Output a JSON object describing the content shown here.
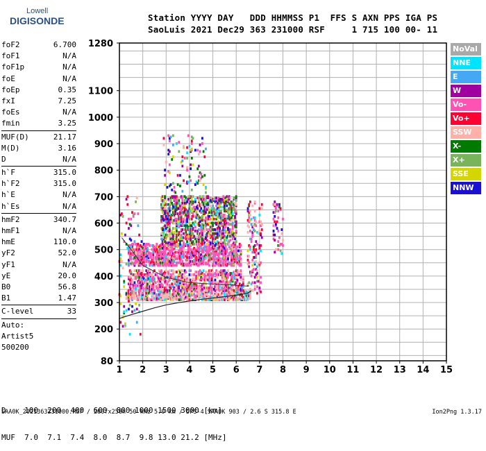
{
  "logo": {
    "line1": "Lowell",
    "line2": "DIGISONDE"
  },
  "header": {
    "line1": "Station YYYY DAY   DDD HHMMSS P1  FFS S AXN PPS IGA PS",
    "line2": "SaoLuis 2021 Dec29 363 231000 RSF     1 715 100 00- 11"
  },
  "params_groups": [
    [
      {
        "name": "foF2",
        "value": "6.700"
      },
      {
        "name": "foF1",
        "value": "N/A"
      },
      {
        "name": "foF1p",
        "value": "N/A"
      },
      {
        "name": "foE",
        "value": "N/A"
      },
      {
        "name": "foEp",
        "value": "0.35"
      },
      {
        "name": "fxI",
        "value": "7.25"
      },
      {
        "name": "foEs",
        "value": "N/A"
      },
      {
        "name": "fmin",
        "value": "3.25"
      }
    ],
    [
      {
        "name": "MUF(D)",
        "value": "21.17"
      },
      {
        "name": "M(D)",
        "value": "3.16"
      },
      {
        "name": "D",
        "value": "N/A"
      }
    ],
    [
      {
        "name": "h`F",
        "value": "315.0"
      },
      {
        "name": "h`F2",
        "value": "315.0"
      },
      {
        "name": "h`E",
        "value": "N/A"
      },
      {
        "name": "h`Es",
        "value": "N/A"
      }
    ],
    [
      {
        "name": "hmF2",
        "value": "340.7"
      },
      {
        "name": "hmF1",
        "value": "N/A"
      },
      {
        "name": "hmE",
        "value": "110.0"
      },
      {
        "name": "yF2",
        "value": "52.0"
      },
      {
        "name": "yF1",
        "value": "N/A"
      },
      {
        "name": "yE",
        "value": "20.0"
      },
      {
        "name": "B0",
        "value": "56.8"
      },
      {
        "name": "B1",
        "value": "1.47"
      }
    ],
    [
      {
        "name": "C-level",
        "value": "33"
      }
    ]
  ],
  "autoscale": {
    "line1": "Auto:",
    "line2": "Artist5",
    "line3": "500200"
  },
  "legend": [
    {
      "label": "NoVal",
      "color": "#a9a9a9"
    },
    {
      "label": "NNE",
      "color": "#00e5ff"
    },
    {
      "label": "E",
      "color": "#45a8f5"
    },
    {
      "label": "W",
      "color": "#a0009f"
    },
    {
      "label": "Vo-",
      "color": "#ff52b5"
    },
    {
      "label": "Vo+",
      "color": "#ff0032"
    },
    {
      "label": "SSW",
      "color": "#ffb0a8"
    },
    {
      "label": "X-",
      "color": "#007a00"
    },
    {
      "label": "X+",
      "color": "#78b45a"
    },
    {
      "label": "SSE",
      "color": "#d4d600"
    },
    {
      "label": "NNW",
      "color": "#1a0fd4"
    }
  ],
  "dmuf": {
    "line1": "D    100  200  400  600  800 1000 1500 3000 [km]",
    "line2": "MUF  7.0  7.1  7.4  8.0  8.7  9.8 13.0 21.2 [MHz]"
  },
  "footer": {
    "text": "SAA0K_2021363231000.RSF / 280fx256h 50 kHz 5.0 km / DPS-4 SAA0K 903 / 2.6 S 315.8 E",
    "version": "Ion2Png 1.3.17"
  },
  "chart_data": {
    "type": "scatter",
    "xlim": [
      1,
      15
    ],
    "ylim": [
      80,
      1280
    ],
    "x_ticks": [
      1,
      2,
      3,
      4,
      5,
      6,
      7,
      8,
      9,
      10,
      11,
      12,
      13,
      14,
      15
    ],
    "y_ticks": [
      80,
      200,
      300,
      400,
      500,
      600,
      700,
      800,
      900,
      1000,
      1100,
      1280
    ],
    "grid": true,
    "legend_position": "right",
    "clusters": [
      {
        "x": [
          1.3,
          6.6
        ],
        "y": [
          310,
          345
        ],
        "density": 0.5,
        "weights": [
          0.1,
          0.05,
          0.05,
          0.15,
          0.08,
          0.45,
          0.05,
          0.02,
          0.02,
          0.03
        ]
      },
      {
        "x": [
          1.4,
          6.3
        ],
        "y": [
          345,
          420
        ],
        "density": 0.38,
        "weights": [
          0.05,
          0.05,
          0.08,
          0.35,
          0.1,
          0.25,
          0.04,
          0.03,
          0.02,
          0.03
        ]
      },
      {
        "x": [
          1.4,
          6.2
        ],
        "y": [
          440,
          520
        ],
        "density": 0.45,
        "weights": [
          0.03,
          0.04,
          0.03,
          0.6,
          0.12,
          0.05,
          0.03,
          0.04,
          0.02,
          0.04
        ]
      },
      {
        "x": [
          2.8,
          6.0
        ],
        "y": [
          520,
          700
        ],
        "density": 0.35,
        "weights": [
          0.05,
          0.05,
          0.15,
          0.12,
          0.1,
          0.08,
          0.15,
          0.12,
          0.1,
          0.08
        ]
      },
      {
        "x": [
          2.9,
          4.7
        ],
        "y": [
          700,
          930
        ],
        "density": 0.05,
        "weights": [
          0.1,
          0.08,
          0.12,
          0.1,
          0.1,
          0.1,
          0.1,
          0.1,
          0.1,
          0.1
        ]
      },
      {
        "x": [
          6.5,
          7.1
        ],
        "y": [
          330,
          680
        ],
        "density": 0.15,
        "weights": [
          0.05,
          0.05,
          0.1,
          0.25,
          0.15,
          0.2,
          0.05,
          0.05,
          0.05,
          0.05
        ]
      },
      {
        "x": [
          7.6,
          8.0
        ],
        "y": [
          480,
          680
        ],
        "density": 0.12,
        "weights": [
          0.02,
          0.02,
          0.05,
          0.4,
          0.1,
          0.1,
          0.05,
          0.05,
          0.1,
          0.11
        ]
      },
      {
        "x": [
          1.0,
          2.0
        ],
        "y": [
          180,
          700
        ],
        "density": 0.03,
        "weights": [
          0.1,
          0.1,
          0.1,
          0.1,
          0.1,
          0.1,
          0.1,
          0.1,
          0.1,
          0.1
        ]
      }
    ],
    "profile_line": {
      "x": [
        1.0,
        1.5,
        2.0,
        2.5,
        3.0,
        3.5,
        4.0,
        4.5,
        5.0,
        5.5,
        6.0,
        6.3,
        6.5,
        6.6,
        6.65
      ],
      "y": [
        240,
        254,
        267,
        280,
        291,
        299,
        306,
        312,
        317,
        322,
        328,
        332,
        336,
        342,
        345
      ]
    },
    "profile_upper": {
      "x": [
        1.1,
        1.5,
        2.0,
        3.0,
        4.0,
        5.0,
        5.5,
        6.0,
        6.5
      ],
      "y": [
        545,
        500,
        440,
        395,
        375,
        370,
        368,
        365,
        362
      ]
    }
  }
}
